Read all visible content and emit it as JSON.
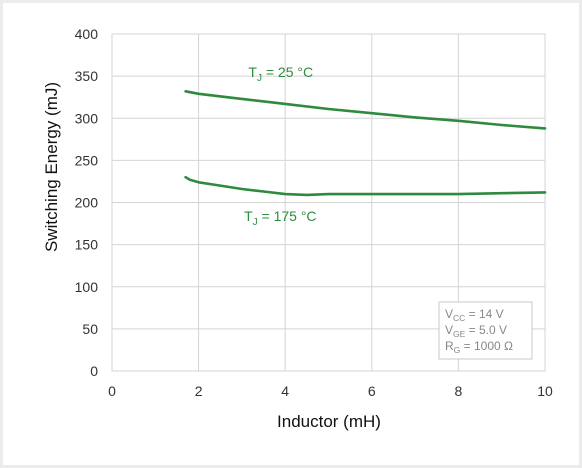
{
  "chart_data": {
    "type": "line",
    "xlabel": "Inductor (mH)",
    "ylabel": "Switching Energy (mJ)",
    "xlim": [
      0,
      10
    ],
    "ylim": [
      0,
      400
    ],
    "x_ticks": [
      0,
      2,
      4,
      6,
      8,
      10
    ],
    "y_ticks": [
      0,
      50,
      100,
      150,
      200,
      250,
      300,
      350,
      400
    ],
    "grid": true,
    "line_color": "#2e8b3e",
    "series": [
      {
        "x": [
          1.7,
          2,
          3,
          4,
          5,
          6,
          7,
          8,
          9,
          10
        ],
        "y": [
          332,
          329,
          323,
          317,
          311,
          306,
          301,
          297,
          292,
          288
        ]
      },
      {
        "x": [
          1.7,
          1.8,
          2,
          2.5,
          3,
          3.5,
          4,
          4.5,
          5,
          6,
          7,
          8,
          9,
          10
        ],
        "y": [
          230,
          227,
          224,
          220,
          216,
          213,
          210,
          209,
          210,
          210,
          210,
          210,
          211,
          212
        ]
      }
    ],
    "annotations": [
      {
        "text": "T",
        "sub": "J",
        "rest": " = 25 °C",
        "x": 3.15,
        "y": 349
      },
      {
        "text": "T",
        "sub": "J",
        "rest": " = 175 °C",
        "x": 3.05,
        "y": 178
      }
    ],
    "conditions": [
      {
        "main": "V",
        "sub": "CC",
        "rest": " = 14 V"
      },
      {
        "main": "V",
        "sub": "GE",
        "rest": " = 5.0 V"
      },
      {
        "main": "R",
        "sub": "G",
        "rest": " = 1000 Ω"
      }
    ]
  }
}
